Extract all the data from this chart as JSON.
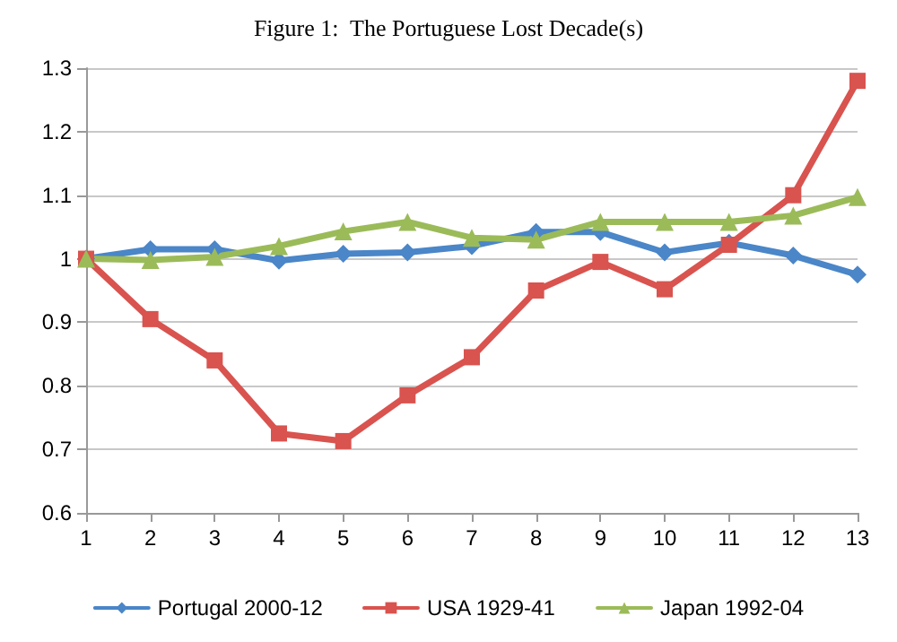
{
  "chart_data": {
    "type": "line",
    "title": "Figure 1:  The Portuguese Lost Decade(s)",
    "x": [
      1,
      2,
      3,
      4,
      5,
      6,
      7,
      8,
      9,
      10,
      11,
      12,
      13
    ],
    "xlim": [
      1,
      13
    ],
    "xticks": [
      1,
      2,
      3,
      4,
      5,
      6,
      7,
      8,
      9,
      10,
      11,
      12,
      13
    ],
    "ylim": [
      0.6,
      1.3
    ],
    "yticks": [
      0.6,
      0.7,
      0.8,
      0.9,
      1,
      1.1,
      1.2,
      1.3
    ],
    "grid": "y",
    "legend": "bottom",
    "series": [
      {
        "name": "Portugal 2000-12",
        "color": "#4a86c8",
        "marker": "diamond",
        "values": [
          1,
          1.015,
          1.015,
          0.997,
          1.008,
          1.01,
          1.02,
          1.042,
          1.042,
          1.01,
          1.025,
          1.005,
          0.975
        ]
      },
      {
        "name": "USA 1929-41",
        "color": "#d9534f",
        "marker": "square",
        "values": [
          1,
          0.905,
          0.84,
          0.725,
          0.713,
          0.785,
          0.845,
          0.95,
          0.995,
          0.952,
          1.022,
          1.1,
          1.28
        ]
      },
      {
        "name": "Japan 1992-04",
        "color": "#9bbb59",
        "marker": "triangle",
        "values": [
          1,
          0.998,
          1.003,
          1.02,
          1.043,
          1.058,
          1.033,
          1.03,
          1.058,
          1.058,
          1.058,
          1.068,
          1.097
        ]
      }
    ]
  }
}
